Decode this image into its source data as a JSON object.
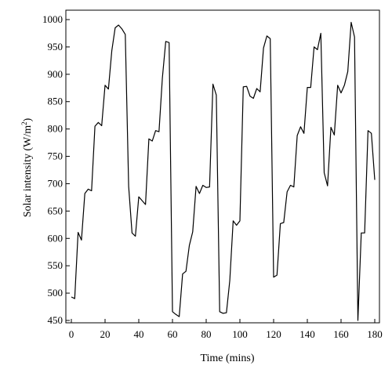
{
  "chart_data": {
    "type": "line",
    "xlabel": "Time (mins)",
    "ylabel_main": "Solar intensity (W/m",
    "ylabel_sup": "2",
    "ylabel_close": ")",
    "xlim": [
      0,
      180
    ],
    "ylim": [
      450,
      1000
    ],
    "x_ticks": [
      0,
      20,
      40,
      60,
      80,
      100,
      120,
      140,
      160,
      180
    ],
    "y_ticks": [
      450,
      500,
      550,
      600,
      650,
      700,
      750,
      800,
      850,
      900,
      950,
      1000
    ],
    "grid": false,
    "line_color": "#000000",
    "series": [
      {
        "x": [
          0,
          2,
          4,
          6,
          8,
          10,
          12,
          14,
          16,
          18,
          20,
          22,
          24,
          26,
          28,
          30,
          32,
          34,
          36,
          38,
          40,
          42,
          44,
          46,
          48,
          50,
          52,
          54,
          56,
          58,
          60,
          62,
          64,
          66,
          68,
          70,
          72,
          74,
          76,
          78,
          80,
          82,
          84,
          86,
          88,
          90,
          92,
          94,
          96,
          98,
          100,
          102,
          104,
          106,
          108,
          110,
          112,
          114,
          116,
          118,
          120,
          122,
          124,
          126,
          128,
          130,
          132,
          134,
          136,
          138,
          140,
          142,
          144,
          146,
          148,
          150,
          152,
          154,
          156,
          158,
          160,
          162,
          164,
          166,
          168,
          170,
          172,
          174,
          176,
          178,
          180
        ],
        "y": [
          493,
          490,
          611,
          597,
          682,
          690,
          687,
          805,
          812,
          806,
          880,
          873,
          943,
          985,
          990,
          983,
          973,
          695,
          610,
          604,
          676,
          669,
          662,
          782,
          778,
          797,
          795,
          893,
          960,
          958,
          466,
          461,
          457,
          535,
          540,
          587,
          612,
          695,
          682,
          697,
          693,
          694,
          882,
          862,
          466,
          463,
          464,
          523,
          632,
          624,
          632,
          877,
          878,
          860,
          856,
          874,
          868,
          948,
          970,
          965,
          529,
          533,
          627,
          629,
          685,
          697,
          694,
          788,
          804,
          792,
          876,
          876,
          950,
          945,
          975,
          720,
          696,
          803,
          789,
          880,
          866,
          880,
          905,
          995,
          968,
          450,
          610,
          610,
          797,
          792,
          707
        ]
      }
    ]
  }
}
